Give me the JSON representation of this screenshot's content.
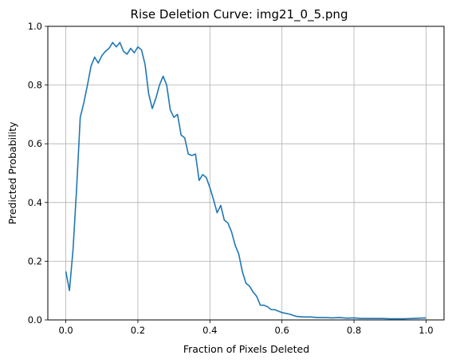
{
  "chart_data": {
    "type": "line",
    "title": "Rise Deletion Curve: img21_0_5.png",
    "xlabel": "Fraction of Pixels Deleted",
    "ylabel": "Predicted Probability",
    "xlim": [
      -0.05,
      1.05
    ],
    "ylim": [
      0.0,
      1.0
    ],
    "xticks": [
      0.0,
      0.2,
      0.4,
      0.6,
      0.8,
      1.0
    ],
    "xtick_labels": [
      "0.0",
      "0.2",
      "0.4",
      "0.6",
      "0.8",
      "1.0"
    ],
    "yticks": [
      0.0,
      0.2,
      0.4,
      0.6,
      0.8,
      1.0
    ],
    "ytick_labels": [
      "0.0",
      "0.2",
      "0.4",
      "0.6",
      "0.8",
      "1.0"
    ],
    "grid": true,
    "line_color": "#1f77b4",
    "series": [
      {
        "x": [
          0.0,
          0.01,
          0.02,
          0.03,
          0.04,
          0.05,
          0.06,
          0.07,
          0.08,
          0.09,
          0.1,
          0.11,
          0.12,
          0.13,
          0.14,
          0.15,
          0.16,
          0.17,
          0.18,
          0.19,
          0.2,
          0.21,
          0.22,
          0.23,
          0.24,
          0.25,
          0.26,
          0.27,
          0.28,
          0.29,
          0.3,
          0.31,
          0.32,
          0.33,
          0.34,
          0.35,
          0.36,
          0.37,
          0.38,
          0.39,
          0.4,
          0.41,
          0.42,
          0.43,
          0.44,
          0.45,
          0.46,
          0.47,
          0.48,
          0.49,
          0.5,
          0.51,
          0.52,
          0.53,
          0.54,
          0.55,
          0.56,
          0.57,
          0.58,
          0.59,
          0.6,
          0.62,
          0.64,
          0.66,
          0.68,
          0.7,
          0.72,
          0.74,
          0.76,
          0.78,
          0.8,
          0.82,
          0.84,
          0.86,
          0.88,
          0.9,
          0.92,
          0.94,
          0.96,
          0.98,
          1.0
        ],
        "y": [
          0.165,
          0.1,
          0.24,
          0.45,
          0.69,
          0.74,
          0.8,
          0.865,
          0.895,
          0.875,
          0.9,
          0.915,
          0.925,
          0.945,
          0.93,
          0.945,
          0.915,
          0.905,
          0.925,
          0.91,
          0.93,
          0.92,
          0.87,
          0.77,
          0.72,
          0.755,
          0.8,
          0.83,
          0.8,
          0.715,
          0.69,
          0.7,
          0.63,
          0.62,
          0.565,
          0.56,
          0.565,
          0.475,
          0.495,
          0.485,
          0.45,
          0.41,
          0.365,
          0.39,
          0.34,
          0.33,
          0.3,
          0.255,
          0.225,
          0.165,
          0.125,
          0.115,
          0.095,
          0.08,
          0.05,
          0.05,
          0.045,
          0.035,
          0.035,
          0.03,
          0.025,
          0.02,
          0.012,
          0.01,
          0.01,
          0.008,
          0.008,
          0.007,
          0.008,
          0.006,
          0.007,
          0.005,
          0.005,
          0.005,
          0.005,
          0.004,
          0.004,
          0.004,
          0.005,
          0.006,
          0.007
        ]
      }
    ]
  }
}
